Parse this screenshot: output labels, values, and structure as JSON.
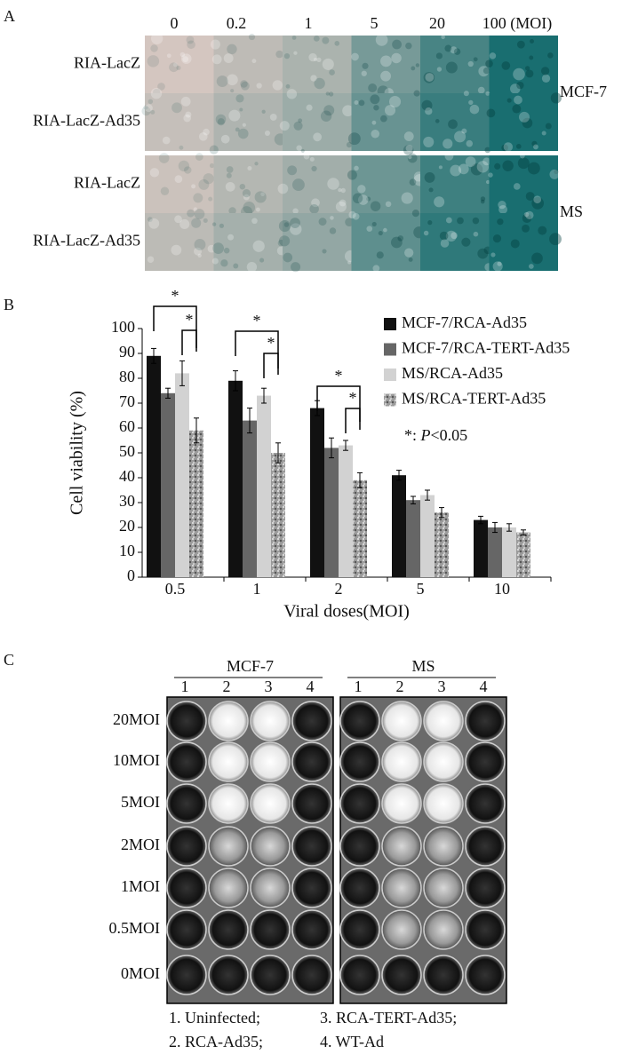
{
  "panel_a": {
    "label": "A",
    "columns": [
      "0",
      "0.2",
      "1",
      "5",
      "20",
      "100 (MOI)"
    ],
    "blocks": [
      {
        "cell_line": "MCF-7",
        "rows": [
          "RIA-LacZ",
          "RIA-LacZ-Ad35"
        ]
      },
      {
        "cell_line": "MS",
        "rows": [
          "RIA-LacZ",
          "RIA-LacZ-Ad35"
        ]
      }
    ]
  },
  "panel_b": {
    "label": "B"
  },
  "chart_data": {
    "type": "bar",
    "y_label": "Cell viability (%)",
    "x_label": "Viral doses(MOI)",
    "categories": [
      "0.5",
      "1",
      "2",
      "5",
      "10"
    ],
    "series": [
      {
        "name": "MCF-7/RCA-Ad35",
        "color": "#111111",
        "values": [
          89,
          79,
          68,
          41,
          23
        ],
        "errors": [
          3,
          4,
          3,
          2,
          1.5
        ]
      },
      {
        "name": "MCF-7/RCA-TERT-Ad35",
        "color": "#666666",
        "values": [
          74,
          63,
          52,
          31,
          20
        ],
        "errors": [
          2,
          5,
          4,
          1.5,
          2
        ]
      },
      {
        "name": "MS/RCA-Ad35",
        "color": "#d2d2d2",
        "values": [
          82,
          73,
          53,
          33,
          20
        ],
        "errors": [
          5,
          3,
          2,
          2,
          1.5
        ]
      },
      {
        "name": "MS/RCA-TERT-Ad35",
        "color": "#9c9c9c",
        "values": [
          59,
          50,
          39,
          26,
          18
        ],
        "errors": [
          5,
          4,
          3,
          2,
          1
        ]
      }
    ],
    "ylim": [
      0,
      100
    ],
    "yticks": [
      0,
      10,
      20,
      30,
      40,
      50,
      60,
      70,
      80,
      90,
      100
    ],
    "significance_labels": [
      "*",
      "*",
      "*",
      "*",
      "*",
      "*"
    ],
    "note": [
      "*: ",
      "P",
      "<0.05"
    ]
  },
  "panel_c": {
    "label": "C",
    "plates": [
      {
        "cell_line": "MCF-7",
        "columns": [
          "1",
          "2",
          "3",
          "4"
        ]
      },
      {
        "cell_line": "MS",
        "columns": [
          "1",
          "2",
          "3",
          "4"
        ]
      }
    ],
    "rows": [
      "20MOI",
      "10MOI",
      "5MOI",
      "2MOI",
      "1MOI",
      "0.5MOI",
      "0MOI"
    ],
    "legend": [
      "1. Uninfected;",
      "2. RCA-Ad35;",
      "3. RCA-TERT-Ad35;",
      "4. WT-Ad"
    ]
  }
}
